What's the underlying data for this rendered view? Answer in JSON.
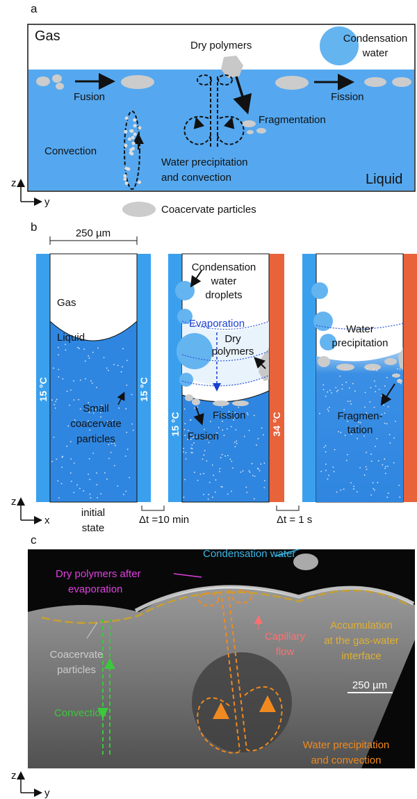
{
  "panel_a": {
    "label": "a",
    "gas": "Gas",
    "liquid": "Liquid",
    "dry_polymers": "Dry polymers",
    "condensation_water": [
      "Condensation",
      "water"
    ],
    "fusion": "Fusion",
    "fission": "Fission",
    "fragmentation": "Fragmentation",
    "convection": "Convection",
    "water_precipitation": [
      "Water precipitation",
      "and convection"
    ],
    "axis_z": "z",
    "axis_y": "y",
    "legend": "Coacervate particles"
  },
  "panel_b": {
    "label": "b",
    "scale_bar": "250 µm",
    "gas": "Gas",
    "liquid": "Liquid",
    "temp_cold": "15 °C",
    "temp_hot": "34 °C",
    "small_particles": [
      "Small",
      "coacervate",
      "particles"
    ],
    "initial_state": [
      "initial",
      "state"
    ],
    "interval_1": "Δt =10 min",
    "condensation_droplets": [
      "Condensation",
      "water",
      "droplets"
    ],
    "evaporation": "Evaporation",
    "dry_polymers": [
      "Dry",
      "polymers"
    ],
    "fission": "Fission",
    "fusion": "Fusion",
    "interval_2": "Δt = 1 s",
    "water_precipitation": [
      "Water",
      "precipitation"
    ],
    "fragmentation": [
      "Fragmen-",
      "tation"
    ],
    "axis_z": "z",
    "axis_x": "x"
  },
  "panel_c": {
    "label": "c",
    "condensation_water": "Condensation water",
    "dry_polymers": [
      "Dry polymers after",
      "evaporation"
    ],
    "capillary_flow": [
      "Capillary",
      "flow"
    ],
    "accumulation": [
      "Accumulation",
      "at the gas-water",
      "interface"
    ],
    "coacervate_particles": [
      "Coacervate",
      "particles"
    ],
    "scale_bar": "250 µm",
    "convection": "Convection",
    "water_precipitation": [
      "Water precipitation",
      "and convection"
    ],
    "axis_z": "z",
    "axis_y": "y"
  }
}
